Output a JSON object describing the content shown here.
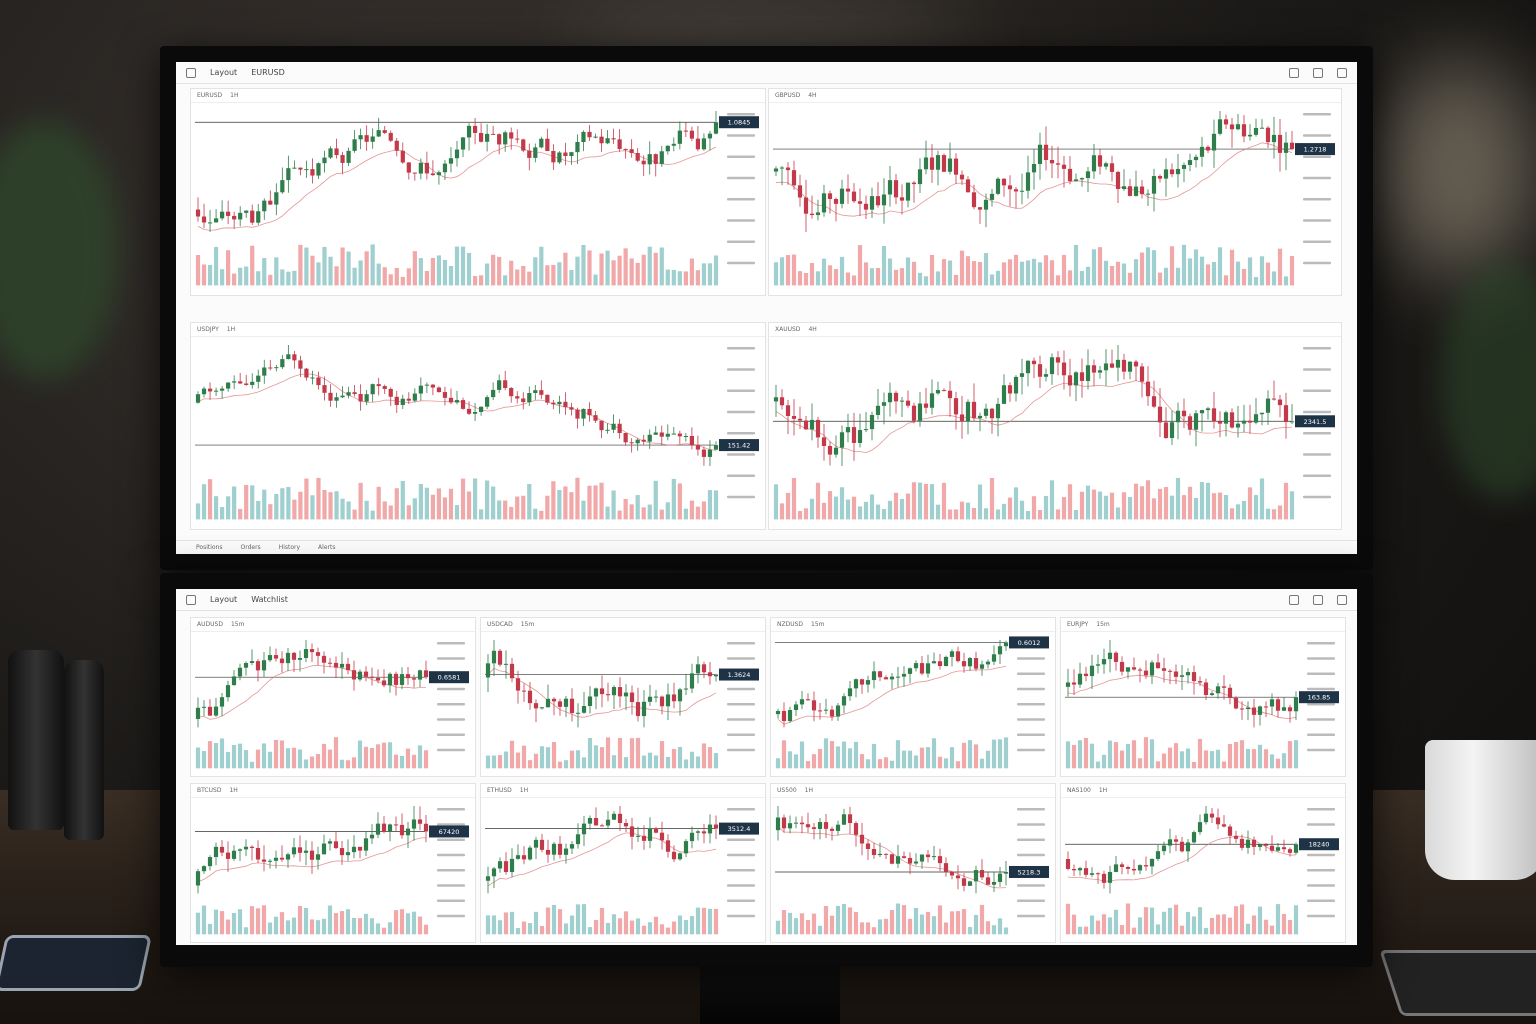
{
  "colors": {
    "up": "#2f7d4a",
    "down": "#c23a4a",
    "vol_up": "#9fcfcf",
    "vol_down": "#f0a8a8",
    "ma": "#e07a7a",
    "price_tag_bg": "#1f3347",
    "hline": "#333333"
  },
  "top_monitor": {
    "toolbar": {
      "workspace": "Layout",
      "symbol": "EURUSD"
    },
    "panels": [
      {
        "symbol": "EURUSD",
        "timeframe": "1H",
        "price_tag": "1.0845",
        "seed": 3
      },
      {
        "symbol": "GBPUSD",
        "timeframe": "4H",
        "price_tag": "1.2718",
        "seed": 7
      },
      {
        "symbol": "USDJPY",
        "timeframe": "1H",
        "price_tag": "151.42",
        "seed": 11
      },
      {
        "symbol": "XAUUSD",
        "timeframe": "4H",
        "price_tag": "2341.5",
        "seed": 19
      }
    ],
    "bottom_bar": [
      "Positions",
      "Orders",
      "History",
      "Alerts"
    ]
  },
  "bottom_monitor": {
    "toolbar": {
      "workspace": "Layout",
      "symbol": "Watchlist"
    },
    "panels": [
      {
        "symbol": "AUDUSD",
        "timeframe": "15m",
        "price_tag": "0.6581",
        "seed": 23
      },
      {
        "symbol": "USDCAD",
        "timeframe": "15m",
        "price_tag": "1.3624",
        "seed": 29
      },
      {
        "symbol": "NZDUSD",
        "timeframe": "15m",
        "price_tag": "0.6012",
        "seed": 31
      },
      {
        "symbol": "EURJPY",
        "timeframe": "15m",
        "price_tag": "163.85",
        "seed": 37
      },
      {
        "symbol": "BTCUSD",
        "timeframe": "1H",
        "price_tag": "67420",
        "seed": 41
      },
      {
        "symbol": "ETHUSD",
        "timeframe": "1H",
        "price_tag": "3512.4",
        "seed": 43
      },
      {
        "symbol": "US500",
        "timeframe": "1H",
        "price_tag": "5218.3",
        "seed": 47
      },
      {
        "symbol": "NAS100",
        "timeframe": "1H",
        "price_tag": "18240",
        "seed": 53
      }
    ]
  }
}
